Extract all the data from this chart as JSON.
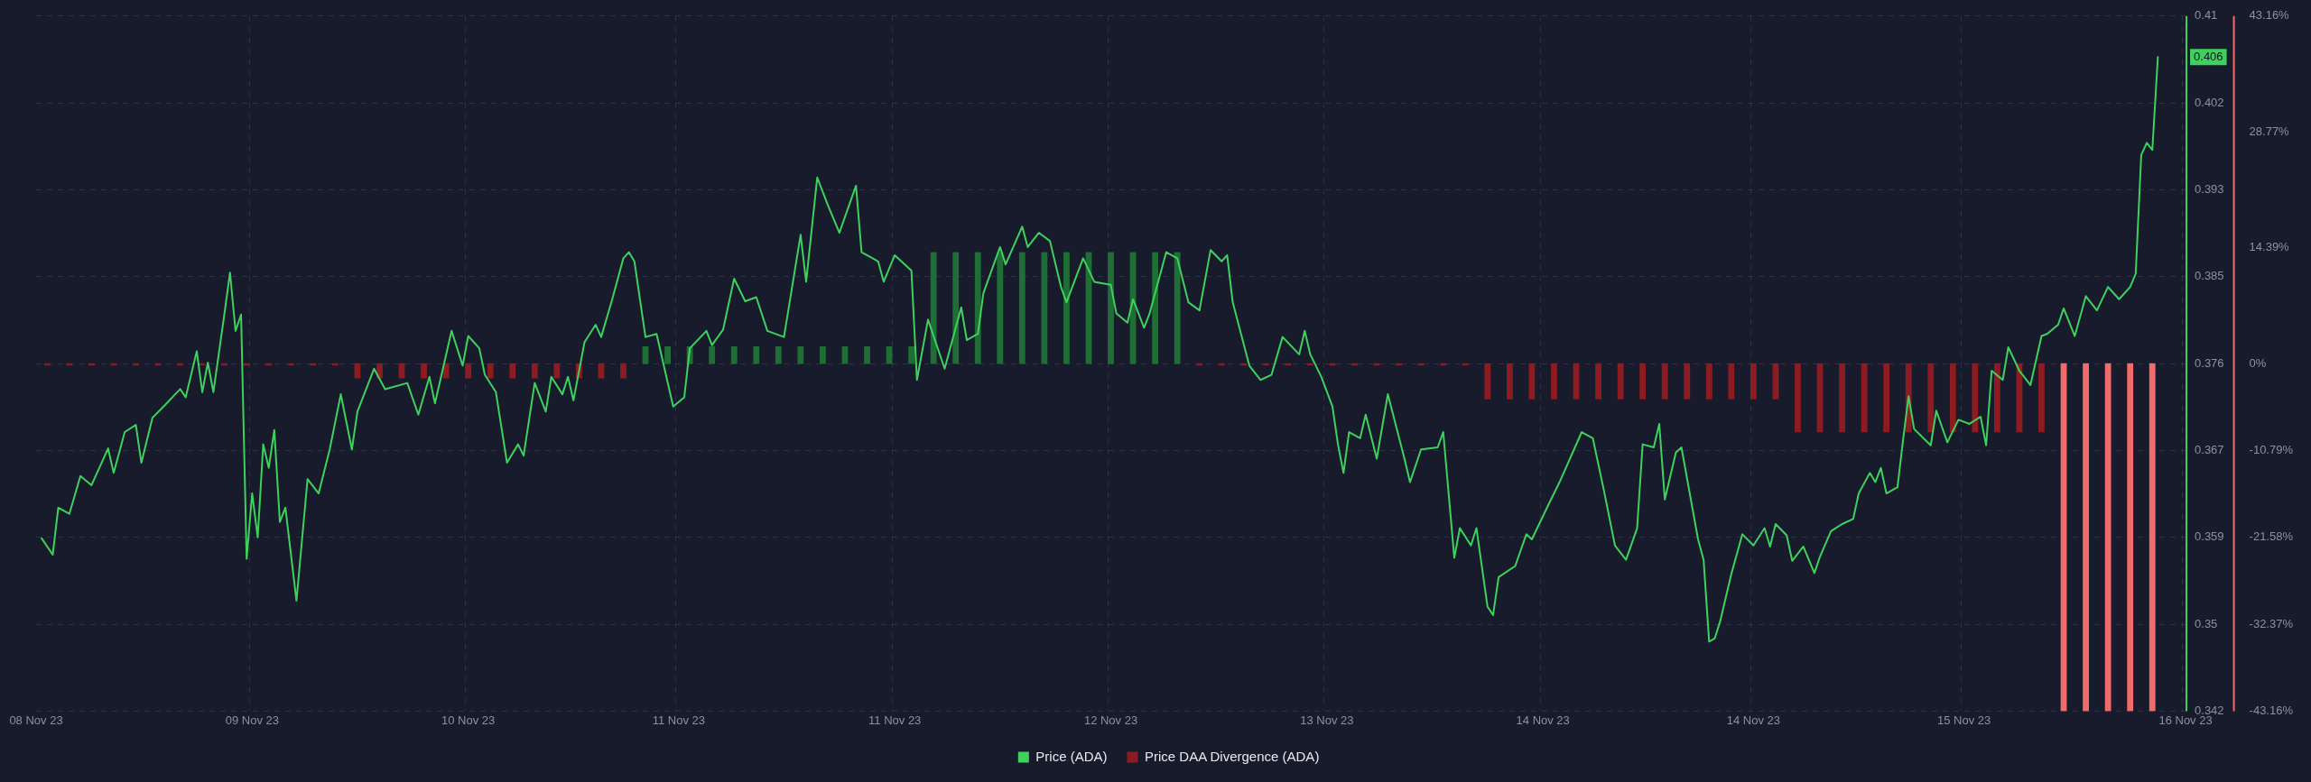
{
  "chart_data": {
    "type": "line",
    "categories": [
      "08 Nov 23",
      null,
      null,
      null,
      null,
      null,
      null,
      null,
      null,
      null,
      null,
      null,
      null,
      null,
      null,
      null,
      null,
      null,
      null,
      null,
      null,
      null,
      null,
      null,
      null,
      null,
      null,
      null,
      null,
      null,
      null,
      null,
      null,
      null,
      null,
      null,
      null,
      null,
      null,
      "09 Nov 23",
      null,
      null,
      null,
      null,
      null,
      null,
      null,
      null,
      null,
      null,
      null,
      null,
      null,
      null,
      null,
      null,
      null,
      null,
      null,
      null,
      null,
      null,
      null,
      null,
      null,
      null,
      null,
      null,
      null,
      null,
      null,
      null,
      null,
      null,
      null,
      null,
      null,
      null,
      "10 Nov 23",
      null,
      null,
      null,
      null,
      null,
      null,
      null,
      null,
      null,
      null,
      null,
      null,
      null,
      null,
      null,
      null,
      null,
      null,
      null,
      null,
      null,
      null,
      null,
      null,
      null,
      null,
      null,
      null,
      null,
      null,
      null,
      null,
      null,
      null,
      null,
      null,
      null,
      "11 Nov 23",
      null,
      null,
      null,
      null,
      null,
      null,
      null,
      null,
      null,
      null,
      null,
      null,
      null,
      null,
      null,
      null,
      null,
      null,
      null,
      null,
      null,
      null,
      null,
      null,
      null,
      null,
      null,
      null,
      null,
      null,
      null,
      null,
      null,
      null,
      null,
      null,
      null,
      null,
      "11 Nov 23",
      null,
      null,
      null,
      null,
      null,
      null,
      null,
      null,
      null,
      null,
      null,
      null,
      null,
      null,
      null,
      null,
      null,
      null,
      null,
      null,
      null,
      null,
      null,
      null,
      null,
      null,
      null,
      null,
      null,
      null,
      null,
      null,
      null,
      null,
      null,
      null,
      null,
      null,
      "12 Nov 23",
      null,
      null,
      null,
      null,
      null,
      null,
      null,
      null,
      null,
      null,
      null,
      null,
      null,
      null,
      null,
      null,
      null,
      null,
      null,
      null,
      null,
      null,
      null,
      null,
      null,
      null,
      null,
      null,
      null,
      null,
      null,
      null,
      null,
      null,
      null,
      null,
      null,
      null,
      "13 Nov 23",
      null,
      null,
      null,
      null,
      null,
      null,
      null,
      null,
      null,
      null,
      null,
      null,
      null,
      null,
      null,
      null,
      null,
      null,
      null,
      null,
      null,
      null,
      null,
      null,
      null,
      null,
      null,
      null,
      null,
      null,
      null,
      null,
      null,
      null,
      null,
      null,
      null,
      null,
      "14 Nov 23",
      null,
      null,
      null,
      null,
      null,
      null,
      null,
      null,
      null,
      null,
      null,
      null,
      null,
      null,
      null,
      null,
      null,
      null,
      null,
      null,
      null,
      null,
      null,
      null,
      null,
      null,
      null,
      null,
      null,
      null,
      null,
      null,
      null,
      null,
      null,
      null,
      null,
      "14 Nov 23",
      null,
      null,
      null,
      null,
      null,
      null,
      null,
      null,
      null,
      null,
      null,
      null,
      null,
      null,
      null,
      null,
      null,
      null,
      null,
      null,
      null,
      null,
      null,
      null,
      null,
      null,
      null,
      null,
      null,
      null,
      null,
      null,
      null,
      null,
      null,
      null,
      null,
      "15 Nov 23",
      null,
      null,
      null,
      null,
      null,
      null,
      null,
      null,
      null,
      null,
      null,
      null,
      null,
      null,
      null,
      null,
      null,
      null,
      null,
      null,
      null,
      null,
      null,
      null,
      null,
      null,
      null,
      null,
      null,
      null,
      null,
      null,
      null,
      null,
      null,
      null,
      null,
      null,
      null,
      "16 Nov 23"
    ],
    "ylim": [
      0.342,
      0.41
    ],
    "yticks": [
      0.342,
      {
        "value": 0.3505,
        "label": "0.35"
      },
      0.359,
      {
        "value": 0.3675,
        "label": "0.367"
      },
      0.376,
      {
        "value": 0.3845,
        "label": "0.385"
      },
      0.393,
      {
        "value": 0.4015,
        "label": "0.402"
      },
      0.41
    ],
    "y2lim": [
      -43.16,
      43.16
    ],
    "y2ticks": [
      {
        "value": 43.16,
        "label": "43.16%"
      },
      {
        "value": 28.77,
        "label": "28.77%"
      },
      {
        "value": 14.39,
        "label": "14.39%"
      },
      {
        "value": 0,
        "label": "0%"
      },
      {
        "value": -10.79,
        "label": "-10.79%"
      },
      {
        "value": -21.58,
        "label": "-21.58%"
      },
      {
        "value": -32.37,
        "label": "-32.37%"
      },
      {
        "value": -43.16,
        "label": "-43.16%"
      }
    ],
    "grid": true,
    "legend": "bottom",
    "marker": "none",
    "line_style": "solid",
    "annotations": [
      "0.406"
    ],
    "series": [
      {
        "name": "Price (ADA)",
        "color": "#3ed15d",
        "values": [
          null,
          0.3589,
          null,
          0.3573,
          0.3619,
          null,
          0.3613,
          null,
          0.365,
          null,
          0.3641,
          null,
          null,
          0.3677,
          0.3653,
          null,
          0.3693,
          null,
          0.37,
          0.3663,
          null,
          0.3707,
          null,
          0.3718,
          null,
          null,
          0.3735,
          0.3727,
          null,
          0.3772,
          0.3732,
          0.3761,
          0.3732,
          null,
          0.3809,
          0.3849,
          0.3792,
          0.3808,
          0.3569,
          0.3633,
          0.359,
          0.3681,
          0.3658,
          0.3695,
          0.3605,
          0.3619,
          null,
          0.3528,
          null,
          0.3647,
          null,
          0.3633,
          null,
          0.3676,
          null,
          0.373,
          null,
          0.3676,
          0.3713,
          null,
          null,
          0.3755,
          null,
          0.3735,
          null,
          null,
          null,
          0.3741,
          null,
          0.371,
          null,
          0.3747,
          0.3721,
          null,
          null,
          0.3792,
          null,
          0.3758,
          0.3787,
          null,
          0.3775,
          0.3749,
          null,
          0.3732,
          null,
          0.3663,
          null,
          0.3681,
          0.367,
          null,
          0.3741,
          null,
          0.3713,
          0.3747,
          null,
          0.373,
          0.3747,
          0.3724,
          null,
          0.3781,
          null,
          0.3798,
          0.3786,
          null,
          0.3823,
          null,
          0.3863,
          0.3869,
          0.386,
          null,
          0.3786,
          null,
          0.3789,
          null,
          null,
          0.3718,
          null,
          0.3727,
          0.3775,
          null,
          null,
          0.3792,
          0.3778,
          null,
          0.3793,
          null,
          0.3843,
          null,
          0.3821,
          null,
          0.3825,
          null,
          0.3792,
          null,
          null,
          0.3786,
          null,
          null,
          0.3886,
          0.384,
          null,
          0.3942,
          null,
          0.3914,
          null,
          0.3888,
          null,
          null,
          0.3934,
          0.3869,
          null,
          0.3863,
          0.386,
          0.384,
          null,
          0.3866,
          null,
          null,
          0.3851,
          0.3744,
          null,
          0.3803,
          null,
          null,
          0.3755,
          null,
          null,
          0.3815,
          0.3783,
          null,
          0.3789,
          0.3829,
          null,
          null,
          0.3874,
          0.3857,
          null,
          null,
          0.3894,
          0.3874,
          null,
          0.3888,
          null,
          0.388,
          null,
          0.3835,
          0.382,
          null,
          null,
          0.3863,
          null,
          0.384,
          null,
          null,
          0.3837,
          0.3809,
          null,
          0.38,
          0.3823,
          null,
          0.3795,
          0.3809,
          null,
          null,
          0.3869,
          null,
          0.3863,
          null,
          0.382,
          null,
          0.3812,
          null,
          0.3871,
          null,
          0.386,
          0.3866,
          0.382,
          null,
          null,
          0.3758,
          null,
          0.3744,
          null,
          0.3749,
          null,
          0.3786,
          null,
          null,
          0.3769,
          0.3792,
          0.3769,
          null,
          0.3747,
          null,
          0.3718,
          0.3681,
          0.3653,
          0.3693,
          null,
          0.3687,
          0.371,
          null,
          0.3667,
          null,
          0.373,
          null,
          null,
          0.3667,
          0.3644,
          null,
          0.3676,
          null,
          null,
          0.3678,
          0.3693,
          null,
          0.357,
          0.3599,
          null,
          0.3582,
          0.3599,
          null,
          0.3522,
          0.3514,
          0.3551,
          null,
          null,
          0.3562,
          null,
          0.3593,
          0.3588,
          null,
          null,
          0.3622,
          null,
          0.3644,
          null,
          null,
          null,
          0.3693,
          null,
          0.3687,
          null,
          0.3636,
          null,
          0.3582,
          null,
          0.3568,
          null,
          0.3599,
          0.3681,
          null,
          0.3678,
          0.3701,
          0.3627,
          null,
          0.3673,
          0.3678,
          null,
          null,
          0.3588,
          0.3568,
          0.3488,
          0.3491,
          0.3508,
          null,
          0.3554,
          null,
          0.3593,
          null,
          0.3582,
          null,
          0.3599,
          0.3581,
          0.3603,
          null,
          0.3592,
          0.3567,
          null,
          0.3581,
          null,
          0.3555,
          0.3571,
          null,
          0.3596,
          null,
          0.3603,
          null,
          0.3608,
          0.3633,
          null,
          0.3653,
          0.3644,
          0.3658,
          0.3633,
          null,
          0.3639,
          0.3685,
          0.3728,
          0.3696,
          null,
          null,
          0.368,
          0.3714,
          null,
          0.3683,
          null,
          0.3705,
          null,
          0.3701,
          null,
          0.3708,
          0.368,
          0.3753,
          null,
          0.3744,
          0.3776,
          null,
          0.3753,
          null,
          0.3739,
          null,
          0.3787,
          0.3789,
          null,
          0.3798,
          0.3814,
          null,
          0.3787,
          null,
          0.3826,
          null,
          0.3812,
          null,
          0.3835,
          null,
          0.3823,
          null,
          0.3835,
          0.3848,
          0.3964,
          0.3976,
          0.3969,
          0.406,
          null,
          null,
          null,
          null,
          null
        ]
      },
      {
        "name": "Price DAA Divergence (ADA)",
        "type": "bar",
        "axis": "y2",
        "color": "#8c1c22",
        "values": [
          null,
          null,
          -0.2,
          null,
          null,
          null,
          -0.2,
          null,
          null,
          null,
          -0.2,
          null,
          null,
          null,
          -0.2,
          null,
          null,
          null,
          -0.2,
          null,
          null,
          null,
          -0.2,
          null,
          null,
          null,
          -0.2,
          null,
          null,
          null,
          -0.2,
          null,
          null,
          null,
          -0.2,
          null,
          null,
          null,
          -0.2,
          null,
          null,
          null,
          -0.2,
          null,
          null,
          null,
          -0.2,
          null,
          null,
          null,
          -0.2,
          null,
          null,
          null,
          -0.2,
          null,
          null,
          null,
          -1.8,
          null,
          null,
          null,
          -1.8,
          null,
          null,
          null,
          -1.8,
          null,
          null,
          null,
          -1.8,
          null,
          null,
          null,
          -1.8,
          null,
          null,
          null,
          -1.8,
          null,
          null,
          null,
          -1.8,
          null,
          null,
          null,
          -1.8,
          null,
          null,
          null,
          -1.8,
          null,
          null,
          null,
          -1.8,
          null,
          null,
          null,
          -1.8,
          null,
          null,
          null,
          -1.8,
          null,
          null,
          null,
          -1.8,
          null,
          null,
          null,
          2.1,
          null,
          null,
          null,
          2.1,
          null,
          null,
          null,
          2.1,
          null,
          null,
          null,
          2.1,
          null,
          null,
          null,
          2.1,
          null,
          null,
          null,
          2.1,
          null,
          null,
          null,
          2.1,
          null,
          null,
          null,
          2.1,
          null,
          null,
          null,
          2.1,
          null,
          null,
          null,
          2.1,
          null,
          null,
          null,
          2.1,
          null,
          null,
          null,
          2.1,
          null,
          null,
          null,
          2.1,
          null,
          null,
          null,
          13.8,
          null,
          null,
          null,
          13.8,
          null,
          null,
          null,
          13.8,
          null,
          null,
          null,
          13.8,
          null,
          null,
          null,
          13.8,
          null,
          null,
          null,
          13.8,
          null,
          null,
          null,
          13.8,
          null,
          null,
          null,
          13.8,
          null,
          null,
          null,
          13.8,
          null,
          null,
          null,
          13.8,
          null,
          null,
          null,
          13.8,
          null,
          null,
          null,
          13.8,
          null,
          null,
          null,
          -0.2,
          null,
          null,
          null,
          -0.2,
          null,
          null,
          null,
          -0.2,
          null,
          null,
          null,
          -0.2,
          null,
          null,
          null,
          -0.2,
          null,
          null,
          null,
          -0.2,
          null,
          null,
          null,
          -0.2,
          null,
          null,
          null,
          -0.2,
          null,
          null,
          null,
          -0.2,
          null,
          null,
          null,
          -0.2,
          null,
          null,
          null,
          -0.2,
          null,
          null,
          null,
          -0.2,
          null,
          null,
          null,
          -0.2,
          null,
          null,
          null,
          -4.4,
          null,
          null,
          null,
          -4.4,
          null,
          null,
          null,
          -4.4,
          null,
          null,
          null,
          -4.4,
          null,
          null,
          null,
          -4.4,
          null,
          null,
          null,
          -4.4,
          null,
          null,
          null,
          -4.4,
          null,
          null,
          null,
          -4.4,
          null,
          null,
          null,
          -4.4,
          null,
          null,
          null,
          -4.4,
          null,
          null,
          null,
          -4.4,
          null,
          null,
          null,
          -4.4,
          null,
          null,
          null,
          -4.4,
          null,
          null,
          null,
          -4.4,
          null,
          null,
          null,
          -8.5,
          null,
          null,
          null,
          -8.5,
          null,
          null,
          null,
          -8.5,
          null,
          null,
          null,
          -8.5,
          null,
          null,
          null,
          -8.5,
          null,
          null,
          null,
          -8.5,
          null,
          null,
          null,
          -8.5,
          null,
          null,
          null,
          -8.5,
          null,
          null,
          null,
          -8.5,
          null,
          null,
          null,
          -8.5,
          null,
          null,
          null,
          -8.5,
          null,
          null,
          null,
          -8.5,
          null,
          null,
          null,
          -43.16,
          null,
          null,
          null,
          -43.16,
          null,
          null,
          null,
          -43.16,
          null,
          null,
          null,
          -43.16,
          null,
          null,
          null,
          -43.16,
          null,
          null,
          null,
          null,
          null,
          null
        ],
        "colors": [
          null,
          null,
          "#8c1c22",
          null,
          null,
          null,
          "#8c1c22",
          null,
          null,
          null,
          "#8c1c22",
          null,
          null,
          null,
          "#8c1c22",
          null,
          null,
          null,
          "#8c1c22",
          null,
          null,
          null,
          "#8c1c22",
          null,
          null,
          null,
          "#8c1c22",
          null,
          null,
          null,
          "#8c1c22",
          null,
          null,
          null,
          "#8c1c22",
          null,
          null,
          null,
          "#8c1c22",
          null,
          null,
          null,
          "#8c1c22",
          null,
          null,
          null,
          "#8c1c22",
          null,
          null,
          null,
          "#8c1c22",
          null,
          null,
          null,
          "#8c1c22",
          null,
          null,
          null,
          "#8c1c22",
          null,
          null,
          null,
          "#8c1c22",
          null,
          null,
          null,
          "#8c1c22",
          null,
          null,
          null,
          "#8c1c22",
          null,
          null,
          null,
          "#8c1c22",
          null,
          null,
          null,
          "#8c1c22",
          null,
          null,
          null,
          "#8c1c22",
          null,
          null,
          null,
          "#8c1c22",
          null,
          null,
          null,
          "#8c1c22",
          null,
          null,
          null,
          "#8c1c22",
          null,
          null,
          null,
          "#8c1c22",
          null,
          null,
          null,
          "#8c1c22",
          null,
          null,
          null,
          "#8c1c22",
          null,
          null,
          null,
          "#1f6e36",
          null,
          null,
          null,
          "#1f6e36",
          null,
          null,
          null,
          "#1f6e36",
          null,
          null,
          null,
          "#1f6e36",
          null,
          null,
          null,
          "#1f6e36",
          null,
          null,
          null,
          "#1f6e36",
          null,
          null,
          null,
          "#1f6e36",
          null,
          null,
          null,
          "#1f6e36",
          null,
          null,
          null,
          "#1f6e36",
          null,
          null,
          null,
          "#1f6e36",
          null,
          null,
          null,
          "#1f6e36",
          null,
          null,
          null,
          "#1f6e36",
          null,
          null,
          null,
          "#1f6e36",
          null,
          null,
          null,
          "#1f6e36",
          null,
          null,
          null,
          "#1f6e36",
          null,
          null,
          null,
          "#1f6e36",
          null,
          null,
          null,
          "#1f6e36",
          null,
          null,
          null,
          "#1f6e36",
          null,
          null,
          null,
          "#1f6e36",
          null,
          null,
          null,
          "#1f6e36",
          null,
          null,
          null,
          "#1f6e36",
          null,
          null,
          null,
          "#1f6e36",
          null,
          null,
          null,
          "#1f6e36",
          null,
          null,
          null,
          "#1f6e36",
          null,
          null,
          null,
          "#1f6e36",
          null,
          null,
          null,
          "#8c1c22",
          null,
          null,
          null,
          "#8c1c22",
          null,
          null,
          null,
          "#8c1c22",
          null,
          null,
          null,
          "#8c1c22",
          null,
          null,
          null,
          "#8c1c22",
          null,
          null,
          null,
          "#8c1c22",
          null,
          null,
          null,
          "#8c1c22",
          null,
          null,
          null,
          "#8c1c22",
          null,
          null,
          null,
          "#8c1c22",
          null,
          null,
          null,
          "#8c1c22",
          null,
          null,
          null,
          "#8c1c22",
          null,
          null,
          null,
          "#8c1c22",
          null,
          null,
          null,
          "#8c1c22",
          null,
          null,
          null,
          "#8c1c22",
          null,
          null,
          null,
          "#8c1c22",
          null,
          null,
          null,
          "#8c1c22",
          null,
          null,
          null,
          "#8c1c22",
          null,
          null,
          null,
          "#8c1c22",
          null,
          null,
          null,
          "#8c1c22",
          null,
          null,
          null,
          "#8c1c22",
          null,
          null,
          null,
          "#8c1c22",
          null,
          null,
          null,
          "#8c1c22",
          null,
          null,
          null,
          "#8c1c22",
          null,
          null,
          null,
          "#8c1c22",
          null,
          null,
          null,
          "#8c1c22",
          null,
          null,
          null,
          "#8c1c22",
          null,
          null,
          null,
          "#8c1c22",
          null,
          null,
          null,
          "#8c1c22",
          null,
          null,
          null,
          "#8c1c22",
          null,
          null,
          null,
          "#8c1c22",
          null,
          null,
          null,
          "#8c1c22",
          null,
          null,
          null,
          "#8c1c22",
          null,
          null,
          null,
          "#8c1c22",
          null,
          null,
          null,
          "#8c1c22",
          null,
          null,
          null,
          "#8c1c22",
          null,
          null,
          null,
          "#8c1c22",
          null,
          null,
          null,
          "#8c1c22",
          null,
          null,
          null,
          "#8c1c22",
          null,
          null,
          null,
          "#8c1c22",
          null,
          null,
          null,
          "#f26b6b",
          null,
          null,
          null,
          "#f26b6b",
          null,
          null,
          null,
          "#f26b6b",
          null,
          null,
          null,
          "#f26b6b",
          null,
          null,
          null,
          "#f26b6b",
          null,
          null,
          null,
          null,
          null,
          null
        ]
      }
    ]
  }
}
